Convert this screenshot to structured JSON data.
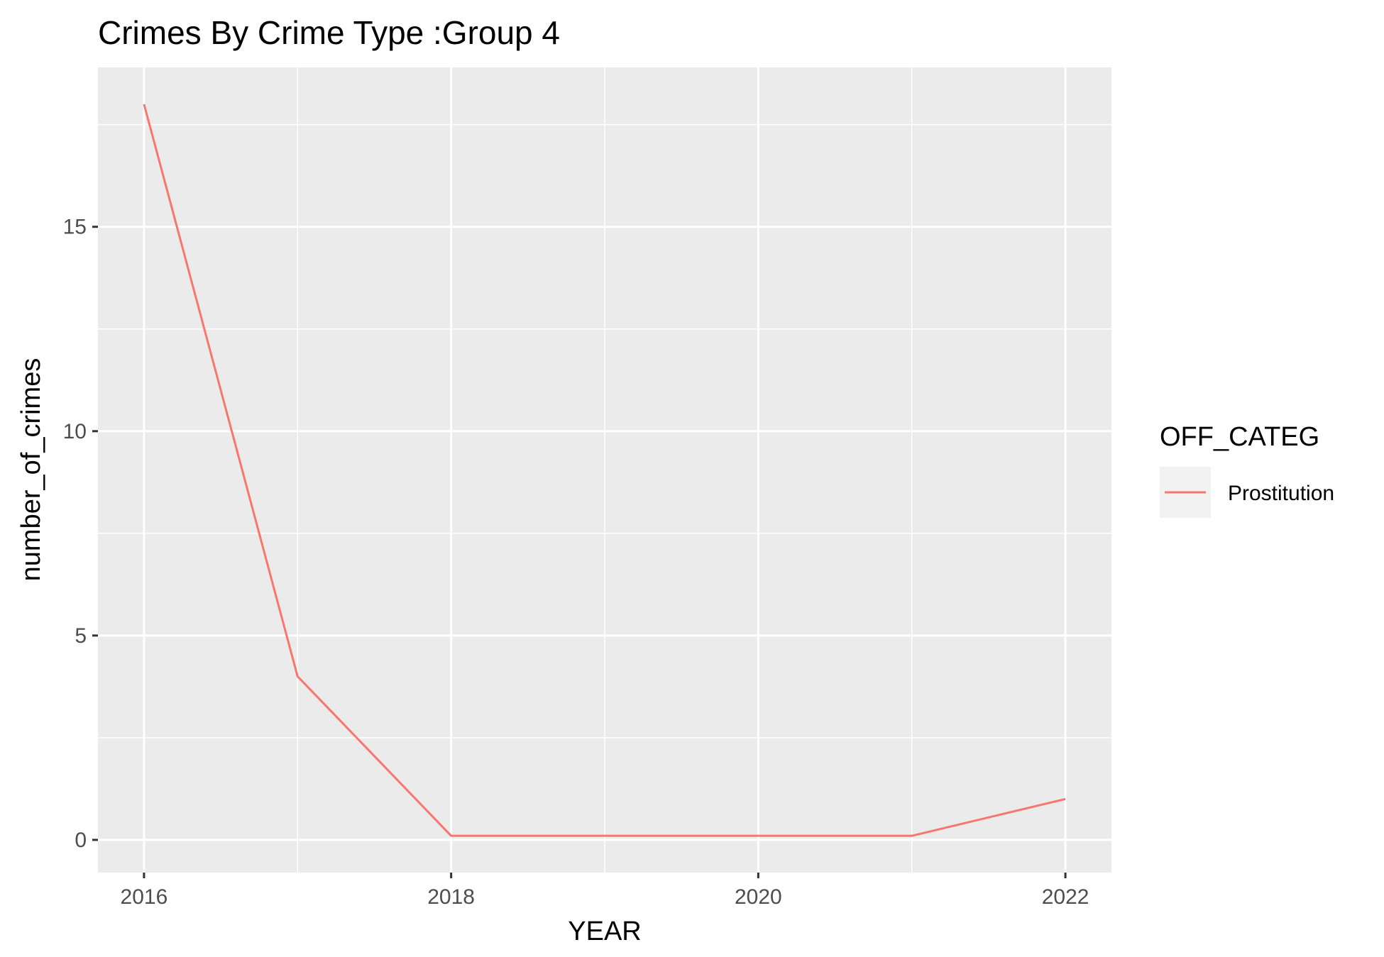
{
  "chart_data": {
    "type": "line",
    "title": "Crimes By Crime Type :Group 4",
    "xlabel": "YEAR",
    "ylabel": "number_of_crimes",
    "x": [
      2016,
      2017,
      2018,
      2019,
      2020,
      2021,
      2022
    ],
    "series": [
      {
        "name": "Prostitution",
        "values": [
          18,
          4,
          0.1,
          0.1,
          0.1,
          0.1,
          1
        ],
        "color": "#F8766D"
      }
    ],
    "xlim": [
      2015.7,
      2022.3
    ],
    "ylim": [
      -0.8,
      18.9
    ],
    "x_ticks": [
      2016,
      2018,
      2020,
      2022
    ],
    "x_tick_labels": [
      "2016",
      "2018",
      "2020",
      "2022"
    ],
    "y_ticks": [
      0,
      5,
      10,
      15
    ],
    "y_tick_labels": [
      "0",
      "5",
      "10",
      "15"
    ],
    "grid": true,
    "legend": {
      "title": "OFF_CATEG",
      "position": "right"
    },
    "colors": {
      "panel_background": "#EBEBEB",
      "grid_line": "#FFFFFF",
      "series_line": "#F8766D"
    }
  }
}
